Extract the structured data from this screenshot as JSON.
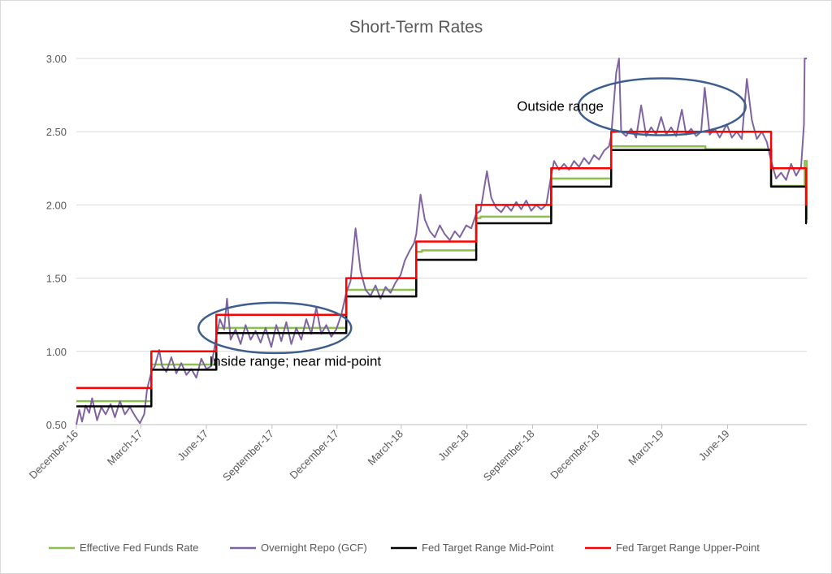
{
  "chart_data": {
    "type": "line",
    "title": "Short-Term Rates",
    "xlabel": "",
    "ylabel": "",
    "ylim": [
      0.5,
      3.0
    ],
    "yticks": [
      "0.50",
      "1.00",
      "1.50",
      "2.00",
      "2.50",
      "3.00"
    ],
    "xlim": [
      "2016-12-01",
      "2019-09-20"
    ],
    "xtick_labels": [
      {
        "date": "2016-12-01",
        "label": "December-16"
      },
      {
        "date": "2017-03-01",
        "label": "March-17"
      },
      {
        "date": "2017-06-01",
        "label": "June-17"
      },
      {
        "date": "2017-09-01",
        "label": "September-17"
      },
      {
        "date": "2017-12-01",
        "label": "December-17"
      },
      {
        "date": "2018-03-01",
        "label": "March-18"
      },
      {
        "date": "2018-06-01",
        "label": "June-18"
      },
      {
        "date": "2018-09-01",
        "label": "September-18"
      },
      {
        "date": "2018-12-01",
        "label": "December-18"
      },
      {
        "date": "2019-03-01",
        "label": "March-19"
      },
      {
        "date": "2019-06-01",
        "label": "June-19"
      }
    ],
    "grid": "horizontal",
    "legend_position": "bottom",
    "series": [
      {
        "name": "Effective Fed Funds Rate",
        "color": "#8cbf4e",
        "style": "step",
        "points": [
          [
            "2016-12-01",
            0.66
          ],
          [
            "2016-12-15",
            0.66
          ],
          [
            "2016-12-15",
            0.66
          ],
          [
            "2017-03-16",
            0.91
          ],
          [
            "2017-06-15",
            1.16
          ],
          [
            "2017-12-14",
            1.42
          ],
          [
            "2018-03-22",
            1.68
          ],
          [
            "2018-03-30",
            1.69
          ],
          [
            "2018-06-14",
            1.91
          ],
          [
            "2018-06-20",
            1.92
          ],
          [
            "2018-09-27",
            2.18
          ],
          [
            "2018-12-20",
            2.4
          ],
          [
            "2019-05-01",
            2.38
          ],
          [
            "2019-08-01",
            2.13
          ],
          [
            "2019-09-17",
            2.3
          ],
          [
            "2019-09-20",
            1.9
          ]
        ]
      },
      {
        "name": "Overnight Repo (GCF)",
        "color": "#8064a2",
        "style": "line",
        "points": [
          [
            "2016-12-01",
            0.5
          ],
          [
            "2016-12-05",
            0.6
          ],
          [
            "2016-12-09",
            0.52
          ],
          [
            "2016-12-14",
            0.63
          ],
          [
            "2016-12-19",
            0.58
          ],
          [
            "2016-12-23",
            0.68
          ],
          [
            "2016-12-30",
            0.53
          ],
          [
            "2017-01-05",
            0.62
          ],
          [
            "2017-01-11",
            0.57
          ],
          [
            "2017-01-18",
            0.64
          ],
          [
            "2017-01-24",
            0.55
          ],
          [
            "2017-01-31",
            0.66
          ],
          [
            "2017-02-07",
            0.57
          ],
          [
            "2017-02-14",
            0.62
          ],
          [
            "2017-02-21",
            0.56
          ],
          [
            "2017-02-28",
            0.51
          ],
          [
            "2017-03-06",
            0.57
          ],
          [
            "2017-03-10",
            0.74
          ],
          [
            "2017-03-16",
            0.86
          ],
          [
            "2017-03-21",
            0.9
          ],
          [
            "2017-03-27",
            1.01
          ],
          [
            "2017-03-31",
            0.9
          ],
          [
            "2017-04-06",
            0.86
          ],
          [
            "2017-04-13",
            0.96
          ],
          [
            "2017-04-20",
            0.85
          ],
          [
            "2017-04-27",
            0.92
          ],
          [
            "2017-05-04",
            0.84
          ],
          [
            "2017-05-11",
            0.88
          ],
          [
            "2017-05-18",
            0.82
          ],
          [
            "2017-05-25",
            0.95
          ],
          [
            "2017-06-01",
            0.88
          ],
          [
            "2017-06-08",
            0.9
          ],
          [
            "2017-06-15",
            1.1
          ],
          [
            "2017-06-20",
            1.22
          ],
          [
            "2017-06-26",
            1.15
          ],
          [
            "2017-06-30",
            1.36
          ],
          [
            "2017-07-05",
            1.08
          ],
          [
            "2017-07-12",
            1.15
          ],
          [
            "2017-07-19",
            1.05
          ],
          [
            "2017-07-26",
            1.18
          ],
          [
            "2017-08-02",
            1.08
          ],
          [
            "2017-08-09",
            1.14
          ],
          [
            "2017-08-16",
            1.06
          ],
          [
            "2017-08-23",
            1.16
          ],
          [
            "2017-08-31",
            1.03
          ],
          [
            "2017-09-07",
            1.18
          ],
          [
            "2017-09-14",
            1.07
          ],
          [
            "2017-09-21",
            1.2
          ],
          [
            "2017-09-28",
            1.05
          ],
          [
            "2017-10-05",
            1.16
          ],
          [
            "2017-10-12",
            1.08
          ],
          [
            "2017-10-19",
            1.22
          ],
          [
            "2017-10-26",
            1.12
          ],
          [
            "2017-11-02",
            1.3
          ],
          [
            "2017-11-09",
            1.12
          ],
          [
            "2017-11-16",
            1.18
          ],
          [
            "2017-11-23",
            1.1
          ],
          [
            "2017-11-30",
            1.15
          ],
          [
            "2017-12-07",
            1.25
          ],
          [
            "2017-12-14",
            1.4
          ],
          [
            "2017-12-20",
            1.48
          ],
          [
            "2017-12-27",
            1.84
          ],
          [
            "2018-01-03",
            1.55
          ],
          [
            "2018-01-10",
            1.42
          ],
          [
            "2018-01-17",
            1.38
          ],
          [
            "2018-01-24",
            1.45
          ],
          [
            "2018-01-31",
            1.36
          ],
          [
            "2018-02-07",
            1.44
          ],
          [
            "2018-02-14",
            1.4
          ],
          [
            "2018-02-21",
            1.47
          ],
          [
            "2018-02-28",
            1.52
          ],
          [
            "2018-03-06",
            1.62
          ],
          [
            "2018-03-12",
            1.68
          ],
          [
            "2018-03-19",
            1.74
          ],
          [
            "2018-03-22",
            1.8
          ],
          [
            "2018-03-28",
            2.07
          ],
          [
            "2018-04-03",
            1.9
          ],
          [
            "2018-04-10",
            1.82
          ],
          [
            "2018-04-17",
            1.78
          ],
          [
            "2018-04-24",
            1.86
          ],
          [
            "2018-05-01",
            1.8
          ],
          [
            "2018-05-08",
            1.76
          ],
          [
            "2018-05-15",
            1.82
          ],
          [
            "2018-05-22",
            1.78
          ],
          [
            "2018-05-31",
            1.86
          ],
          [
            "2018-06-07",
            1.84
          ],
          [
            "2018-06-14",
            1.94
          ],
          [
            "2018-06-20",
            1.96
          ],
          [
            "2018-06-29",
            2.23
          ],
          [
            "2018-07-05",
            2.05
          ],
          [
            "2018-07-12",
            1.98
          ],
          [
            "2018-07-19",
            1.95
          ],
          [
            "2018-07-26",
            2.0
          ],
          [
            "2018-08-02",
            1.96
          ],
          [
            "2018-08-09",
            2.02
          ],
          [
            "2018-08-16",
            1.97
          ],
          [
            "2018-08-23",
            2.03
          ],
          [
            "2018-08-30",
            1.96
          ],
          [
            "2018-09-06",
            2.0
          ],
          [
            "2018-09-13",
            1.97
          ],
          [
            "2018-09-20",
            2.0
          ],
          [
            "2018-09-27",
            2.2
          ],
          [
            "2018-10-01",
            2.3
          ],
          [
            "2018-10-08",
            2.24
          ],
          [
            "2018-10-15",
            2.28
          ],
          [
            "2018-10-22",
            2.24
          ],
          [
            "2018-10-29",
            2.3
          ],
          [
            "2018-11-05",
            2.26
          ],
          [
            "2018-11-12",
            2.32
          ],
          [
            "2018-11-19",
            2.28
          ],
          [
            "2018-11-26",
            2.34
          ],
          [
            "2018-12-03",
            2.31
          ],
          [
            "2018-12-10",
            2.37
          ],
          [
            "2018-12-17",
            2.4
          ],
          [
            "2018-12-20",
            2.47
          ],
          [
            "2018-12-27",
            2.9
          ],
          [
            "2018-12-31",
            3.0
          ],
          [
            "2019-01-03",
            2.5
          ],
          [
            "2019-01-10",
            2.47
          ],
          [
            "2019-01-17",
            2.52
          ],
          [
            "2019-01-24",
            2.46
          ],
          [
            "2019-01-31",
            2.68
          ],
          [
            "2019-02-07",
            2.47
          ],
          [
            "2019-02-14",
            2.53
          ],
          [
            "2019-02-21",
            2.48
          ],
          [
            "2019-02-28",
            2.6
          ],
          [
            "2019-03-07",
            2.48
          ],
          [
            "2019-03-14",
            2.53
          ],
          [
            "2019-03-21",
            2.47
          ],
          [
            "2019-03-29",
            2.65
          ],
          [
            "2019-04-04",
            2.48
          ],
          [
            "2019-04-11",
            2.52
          ],
          [
            "2019-04-18",
            2.47
          ],
          [
            "2019-04-25",
            2.5
          ],
          [
            "2019-04-30",
            2.8
          ],
          [
            "2019-05-07",
            2.48
          ],
          [
            "2019-05-14",
            2.52
          ],
          [
            "2019-05-21",
            2.46
          ],
          [
            "2019-05-31",
            2.55
          ],
          [
            "2019-06-07",
            2.46
          ],
          [
            "2019-06-14",
            2.5
          ],
          [
            "2019-06-21",
            2.45
          ],
          [
            "2019-06-28",
            2.86
          ],
          [
            "2019-07-05",
            2.58
          ],
          [
            "2019-07-12",
            2.45
          ],
          [
            "2019-07-19",
            2.5
          ],
          [
            "2019-07-26",
            2.43
          ],
          [
            "2019-08-01",
            2.3
          ],
          [
            "2019-08-08",
            2.18
          ],
          [
            "2019-08-15",
            2.22
          ],
          [
            "2019-08-22",
            2.17
          ],
          [
            "2019-08-29",
            2.28
          ],
          [
            "2019-09-05",
            2.2
          ],
          [
            "2019-09-12",
            2.26
          ],
          [
            "2019-09-16",
            2.55
          ],
          [
            "2019-09-17",
            3.0
          ],
          [
            "2019-09-20",
            3.0
          ]
        ]
      },
      {
        "name": "Fed Target Range Mid-Point",
        "color": "#000000",
        "style": "step",
        "points": [
          [
            "2016-12-01",
            0.625
          ],
          [
            "2017-03-16",
            0.875
          ],
          [
            "2017-06-15",
            1.125
          ],
          [
            "2017-12-14",
            1.375
          ],
          [
            "2018-03-22",
            1.625
          ],
          [
            "2018-06-14",
            1.875
          ],
          [
            "2018-09-27",
            2.125
          ],
          [
            "2018-12-20",
            2.375
          ],
          [
            "2019-08-01",
            2.125
          ],
          [
            "2019-09-19",
            1.875
          ],
          [
            "2019-09-20",
            1.875
          ]
        ]
      },
      {
        "name": "Fed Target Range Upper-Point",
        "color": "#ff0000",
        "style": "step",
        "points": [
          [
            "2016-12-01",
            0.75
          ],
          [
            "2017-03-16",
            1.0
          ],
          [
            "2017-06-15",
            1.25
          ],
          [
            "2017-12-14",
            1.5
          ],
          [
            "2018-03-22",
            1.75
          ],
          [
            "2018-06-14",
            2.0
          ],
          [
            "2018-09-27",
            2.25
          ],
          [
            "2018-12-20",
            2.5
          ],
          [
            "2019-08-01",
            2.25
          ],
          [
            "2019-09-19",
            2.0
          ],
          [
            "2019-09-20",
            2.0
          ]
        ]
      }
    ],
    "annotations": [
      {
        "text": "Inside range; near mid-point",
        "ellipse_center": [
          "2017-09-05",
          1.16
        ],
        "anchor_date": "2017-06-05",
        "anchor_value": 0.93
      },
      {
        "text": "Outside range",
        "ellipse_center": [
          "2019-03-01",
          2.67
        ],
        "anchor_date": "2018-08-10",
        "anchor_value": 2.67
      }
    ]
  }
}
